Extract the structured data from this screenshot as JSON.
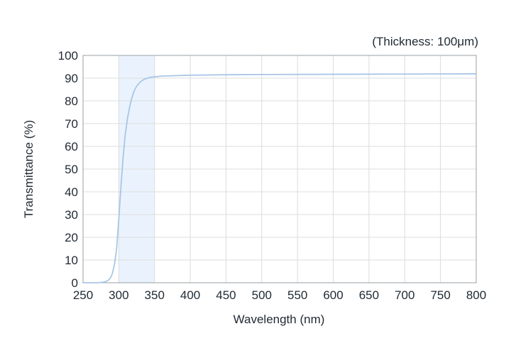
{
  "chart_data": {
    "type": "line",
    "title": "",
    "annotation": "(Thickness: 100μm)",
    "xlabel": "Wavelength (nm)",
    "ylabel": "Transmittance (%)",
    "xlim": [
      250,
      800
    ],
    "ylim": [
      0,
      100
    ],
    "x_ticks": [
      "250",
      "300",
      "350",
      "400",
      "450",
      "500",
      "550",
      "600",
      "650",
      "700",
      "750",
      "800"
    ],
    "y_ticks": [
      "0",
      "10",
      "20",
      "30",
      "40",
      "50",
      "60",
      "70",
      "80",
      "90",
      "100"
    ],
    "grid": true,
    "highlight_band": {
      "x_range": [
        300,
        350
      ],
      "color": "#eaf3fd"
    },
    "line_color": "#a9c6e6",
    "series": [
      {
        "x": [
          250,
          270,
          280,
          285,
          288,
          291,
          294,
          297,
          300,
          303,
          306,
          309,
          312,
          315,
          318,
          321,
          325,
          330,
          335,
          340,
          345,
          350,
          360,
          380,
          400,
          450,
          500,
          600,
          700,
          800
        ],
        "values": [
          0,
          0,
          0.3,
          1,
          2,
          4,
          8,
          15,
          28,
          42,
          55,
          65,
          72,
          77,
          81,
          84,
          86.5,
          88.3,
          89.4,
          90,
          90.4,
          90.6,
          90.9,
          91.1,
          91.3,
          91.5,
          91.6,
          91.7,
          91.8,
          91.9
        ]
      }
    ]
  }
}
